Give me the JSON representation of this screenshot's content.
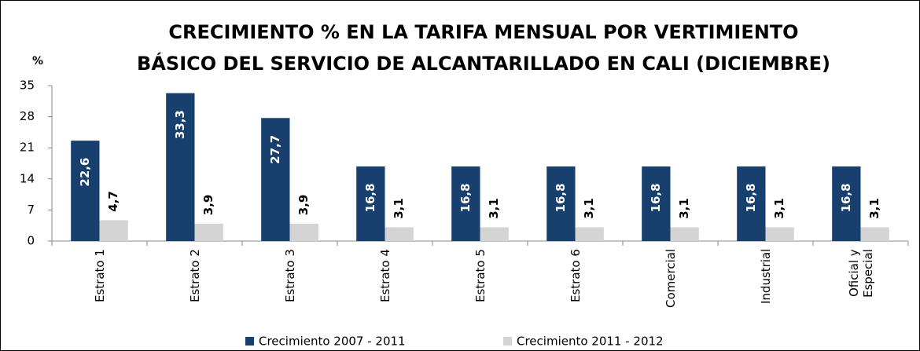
{
  "chart_data": {
    "type": "bar",
    "title": [
      "CRECIMIENTO % EN LA TARIFA MENSUAL POR VERTIMIENTO",
      "BÁSICO  DEL SERVICIO DE ALCANTARILLADO EN CALI (DICIEMBRE)"
    ],
    "y_label": "%",
    "categories": [
      "Estrato 1",
      "Estrato 2",
      "Estrato 3",
      "Estrato 4",
      "Estrato 5",
      "Estrato 6",
      "Comercial",
      "Industrial",
      "Oficial y Especial"
    ],
    "series": [
      {
        "name": "Crecimiento 2007 - 2011",
        "color": "#17406f",
        "values": [
          22.6,
          33.3,
          27.7,
          16.8,
          16.8,
          16.8,
          16.8,
          16.8,
          16.8
        ],
        "value_labels": [
          "22,6",
          "33,3",
          "27,7",
          "16,8",
          "16,8",
          "16,8",
          "16,8",
          "16,8",
          "16,8"
        ]
      },
      {
        "name": "Crecimiento 2011 - 2012",
        "color": "#d4d4d4",
        "values": [
          4.7,
          3.9,
          3.9,
          3.1,
          3.1,
          3.1,
          3.1,
          3.1,
          3.1
        ],
        "value_labels": [
          "4,7",
          "3,9",
          "3,9",
          "3,1",
          "3,1",
          "3,1",
          "3,1",
          "3,1",
          "3,1"
        ]
      }
    ],
    "ylim": [
      0,
      35
    ],
    "yticks": [
      0,
      7,
      14,
      21,
      28,
      35
    ],
    "grid": false,
    "legend": "bottom"
  }
}
